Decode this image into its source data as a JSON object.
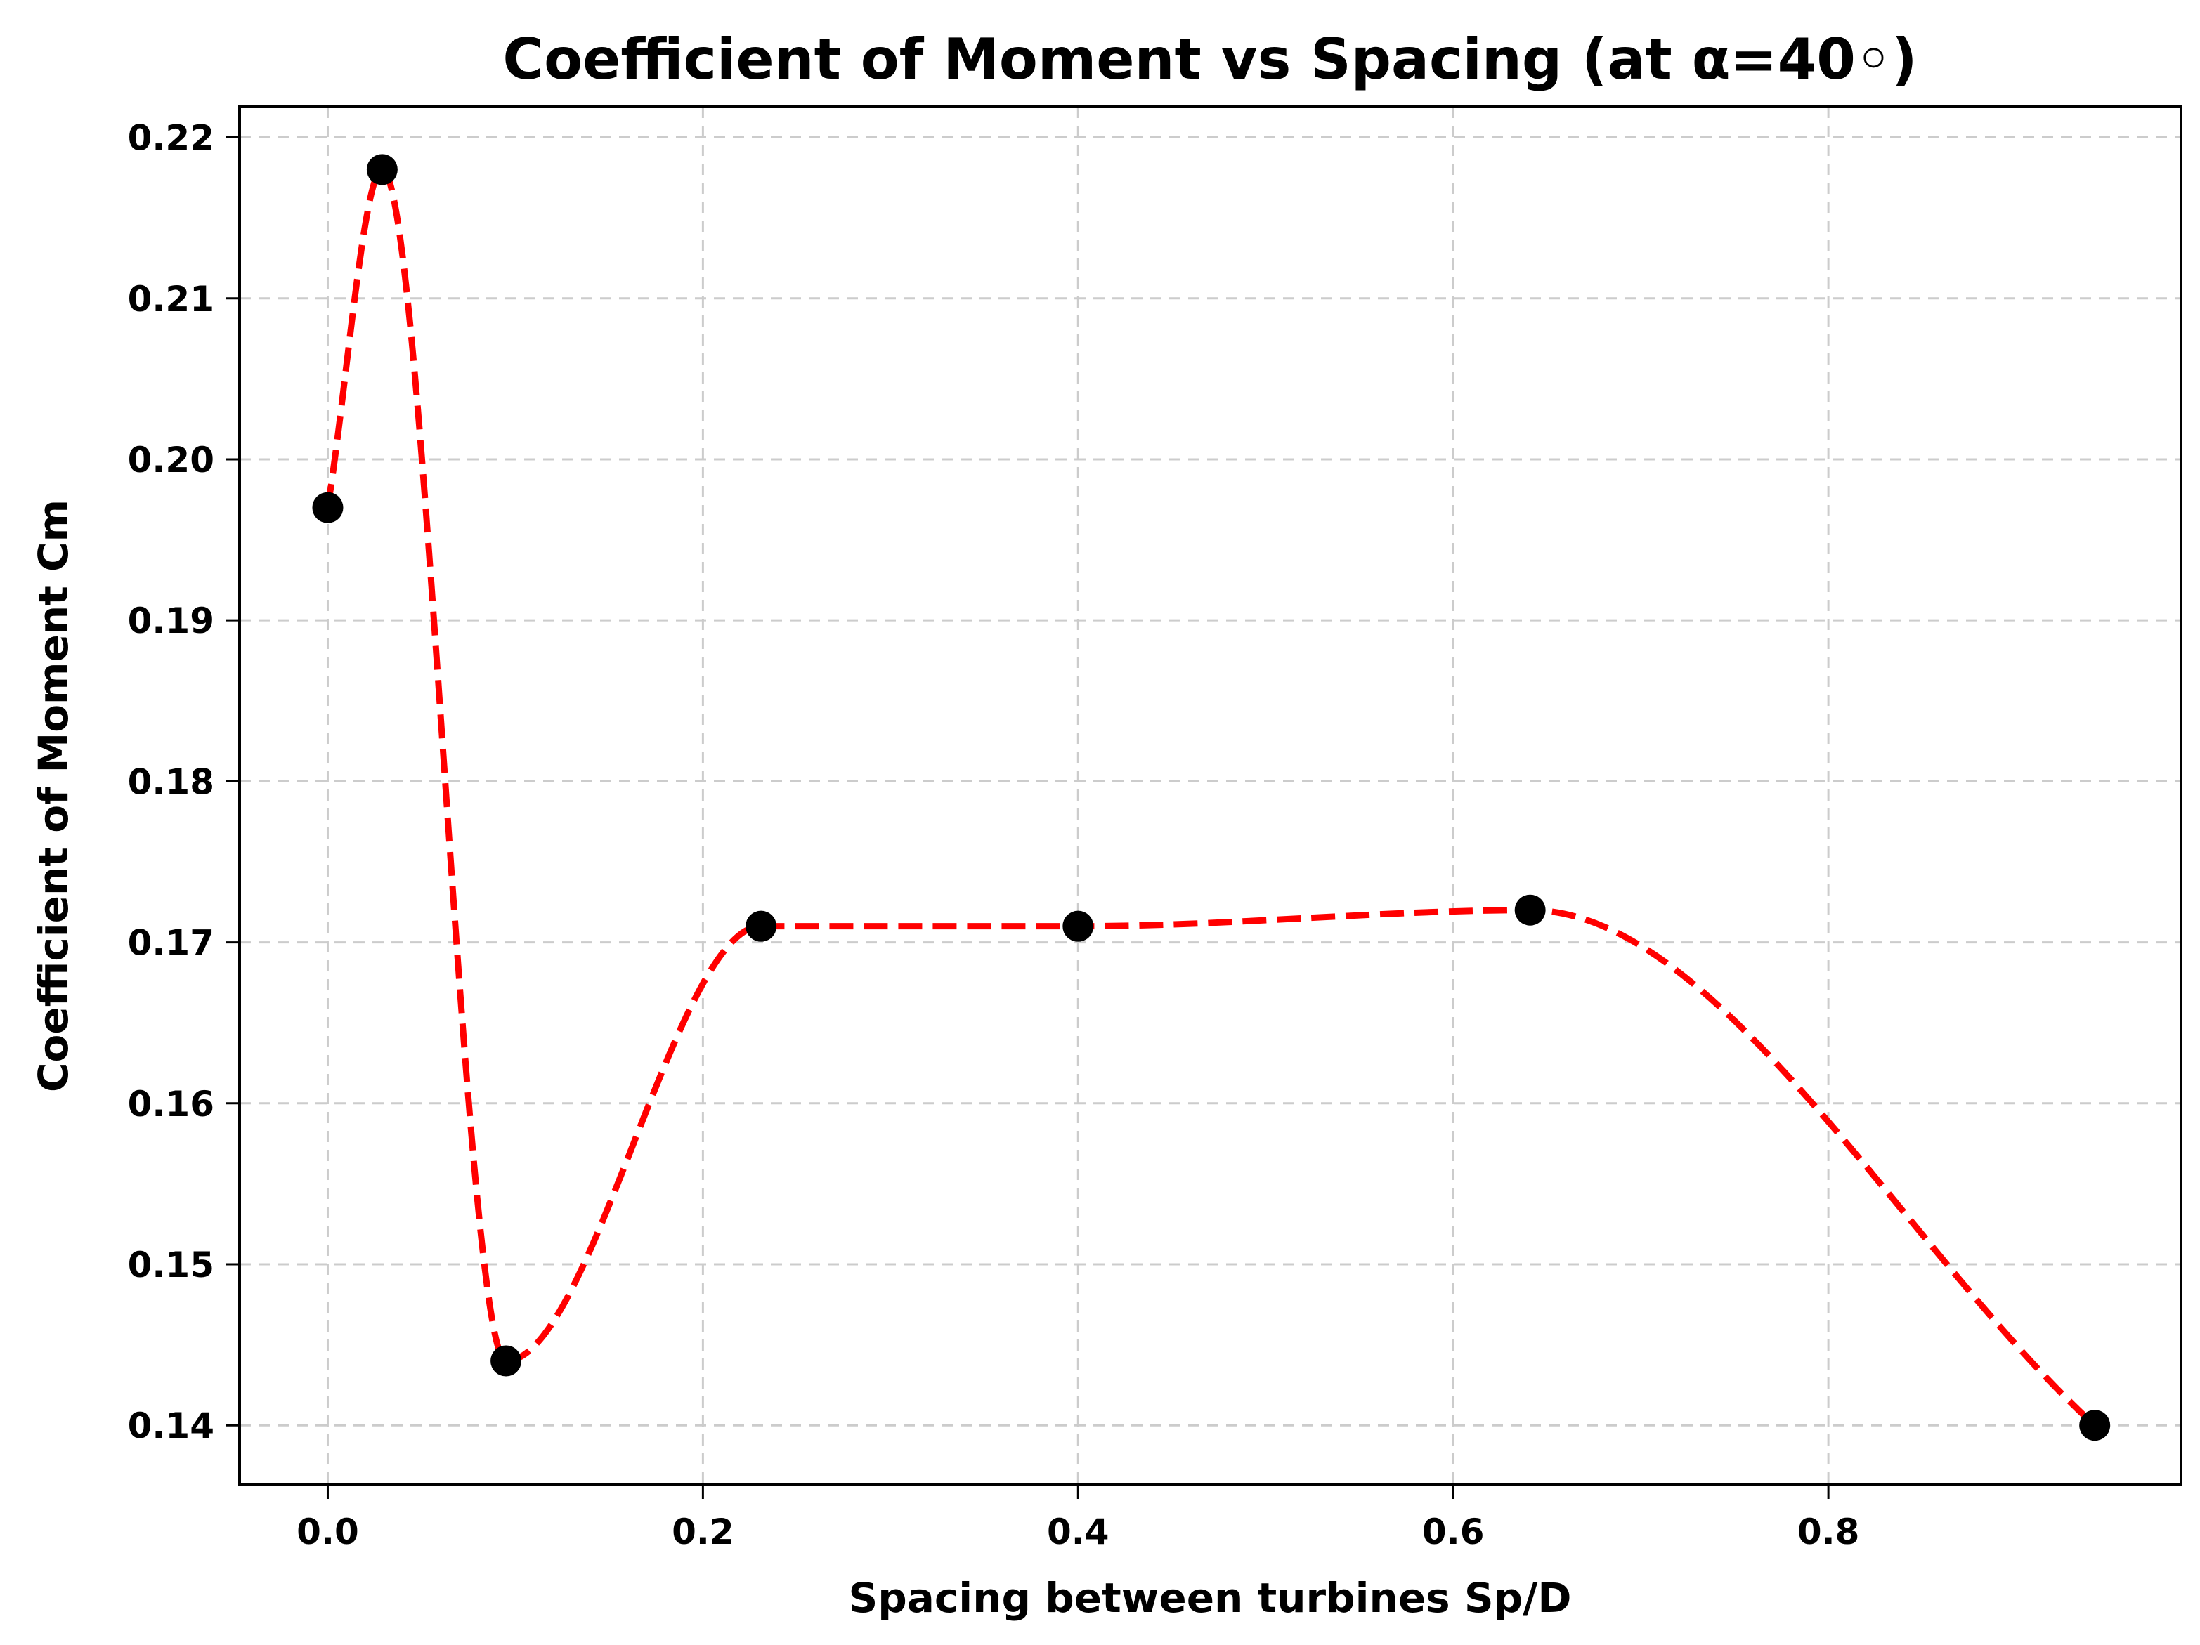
{
  "chart_data": {
    "type": "line",
    "title": "Coefficient of Moment vs Spacing (at α=40◦)",
    "xlabel": "Spacing between turbines Sp/D",
    "ylabel": "Coefficient of Moment Cm",
    "xlim": [
      -0.047,
      0.988
    ],
    "ylim": [
      0.1363,
      0.2219
    ],
    "x_ticks": [
      0.0,
      0.2,
      0.4,
      0.6,
      0.8
    ],
    "x_tick_labels": [
      "0.0",
      "0.2",
      "0.4",
      "0.6",
      "0.8"
    ],
    "y_ticks": [
      0.14,
      0.15,
      0.16,
      0.17,
      0.18,
      0.19,
      0.2,
      0.21,
      0.22
    ],
    "y_tick_labels": [
      "0.14",
      "0.15",
      "0.16",
      "0.17",
      "0.18",
      "0.19",
      "0.20",
      "0.21",
      "0.22"
    ],
    "grid": true,
    "grid_style": "dashed",
    "legend": null,
    "series": [
      {
        "name": "Cm",
        "x": [
          0.0,
          0.029,
          0.095,
          0.231,
          0.4,
          0.641,
          0.942
        ],
        "values": [
          0.197,
          0.218,
          0.144,
          0.171,
          0.171,
          0.172,
          0.14
        ],
        "marker": "circle",
        "marker_color": "#000000",
        "line_style": "dashed-smooth",
        "line_color": "#ff0000"
      }
    ]
  },
  "colors": {
    "background": "#ffffff",
    "line": "#ff0000",
    "marker": "#000000",
    "grid": "#cccccc",
    "axes": "#000000"
  }
}
